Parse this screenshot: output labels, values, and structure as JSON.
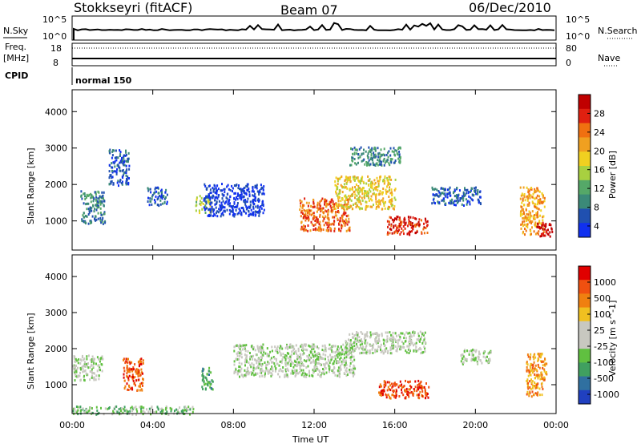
{
  "header": {
    "title": "Stokkseyri (fitACF)",
    "beam": "Beam 07",
    "date": "06/Dec/2010"
  },
  "panels": {
    "nsky_label": "N.Sky",
    "nsky_ticks": [
      "10^5",
      "10^0"
    ],
    "nsearch_label": "N.Search",
    "nsearch_ticks": [
      "10^5",
      "10^0"
    ],
    "freq_label": "Freq.",
    "freq_unit": "[MHz]",
    "freq_ticks": [
      "18",
      "8"
    ],
    "nave_label": "Nave",
    "nave_ticks": [
      "80",
      "0"
    ],
    "cpid_label": "CPID",
    "cpid_value": "normal 150"
  },
  "chart_data": [
    {
      "type": "heatmap",
      "name": "power",
      "ylabel": "Slant Range [km]",
      "ylim": [
        200,
        4600
      ],
      "yticks": [
        "1000",
        "2000",
        "3000",
        "4000"
      ],
      "xlim": [
        "00:00",
        "24:00"
      ],
      "colorbar_label": "Power [dB]",
      "colorbar_ticks": [
        "28",
        "24",
        "20",
        "16",
        "12",
        "8",
        "4"
      ],
      "colors": [
        "#1030f0",
        "#2050b0",
        "#3b8a78",
        "#55a868",
        "#a8d040",
        "#f0d020",
        "#f0a020",
        "#f07010",
        "#e02010",
        "#c00000"
      ],
      "patches": [
        {
          "t": 1.0,
          "r": 1400,
          "dt": 1.2,
          "dr": 900,
          "level": 2
        },
        {
          "t": 2.3,
          "r": 2500,
          "dt": 1.0,
          "dr": 1000,
          "level": 1
        },
        {
          "t": 4.2,
          "r": 1700,
          "dt": 1.0,
          "dr": 500,
          "level": 1
        },
        {
          "t": 6.5,
          "r": 1500,
          "dt": 0.8,
          "dr": 500,
          "level": 4
        },
        {
          "t": 8.0,
          "r": 1600,
          "dt": 3.0,
          "dr": 900,
          "level": 0
        },
        {
          "t": 12.5,
          "r": 1200,
          "dt": 2.5,
          "dr": 900,
          "level": 7
        },
        {
          "t": 14.5,
          "r": 1800,
          "dt": 3.0,
          "dr": 900,
          "level": 5
        },
        {
          "t": 15.0,
          "r": 2800,
          "dt": 2.5,
          "dr": 500,
          "level": 2
        },
        {
          "t": 16.6,
          "r": 900,
          "dt": 2.0,
          "dr": 500,
          "level": 8
        },
        {
          "t": 19.0,
          "r": 1700,
          "dt": 2.5,
          "dr": 500,
          "level": 1
        },
        {
          "t": 22.8,
          "r": 1300,
          "dt": 1.2,
          "dr": 1300,
          "level": 6
        },
        {
          "t": 23.4,
          "r": 800,
          "dt": 0.8,
          "dr": 400,
          "level": 9
        }
      ]
    },
    {
      "type": "heatmap",
      "name": "velocity",
      "ylabel": "Slant Range [km]",
      "xlabel": "Time UT",
      "ylim": [
        200,
        4600
      ],
      "yticks": [
        "1000",
        "2000",
        "3000",
        "4000"
      ],
      "xticks": [
        "00:00",
        "04:00",
        "08:00",
        "12:00",
        "16:00",
        "20:00",
        "00:00"
      ],
      "colorbar_label": "Velocity [m s^-1]",
      "colorbar_ticks": [
        "1000",
        "500",
        "100",
        "25",
        "-25",
        "-100",
        "-500",
        "-1000"
      ],
      "colors": [
        "#2040c0",
        "#3070a0",
        "#40a060",
        "#60c040",
        "#c8c8c0",
        "#c8c8c0",
        "#f0c020",
        "#f08010",
        "#f05010",
        "#e00000"
      ],
      "patches": [
        {
          "t": 0.5,
          "r": 1500,
          "dt": 2.0,
          "dr": 700,
          "level": 4
        },
        {
          "t": 3.0,
          "r": 1300,
          "dt": 1.0,
          "dr": 900,
          "level": 8
        },
        {
          "t": 6.7,
          "r": 1200,
          "dt": 0.6,
          "dr": 600,
          "level": 2
        },
        {
          "t": 11.0,
          "r": 1700,
          "dt": 6.0,
          "dr": 900,
          "level": 4
        },
        {
          "t": 15.5,
          "r": 2200,
          "dt": 4.0,
          "dr": 600,
          "level": 4
        },
        {
          "t": 16.4,
          "r": 900,
          "dt": 2.5,
          "dr": 500,
          "level": 8
        },
        {
          "t": 20.0,
          "r": 1800,
          "dt": 1.5,
          "dr": 400,
          "level": 4
        },
        {
          "t": 23.0,
          "r": 1300,
          "dt": 1.0,
          "dr": 1200,
          "level": 7
        },
        {
          "t": 2.5,
          "r": 300,
          "dt": 7.0,
          "dr": 250,
          "level": 3
        }
      ]
    }
  ]
}
